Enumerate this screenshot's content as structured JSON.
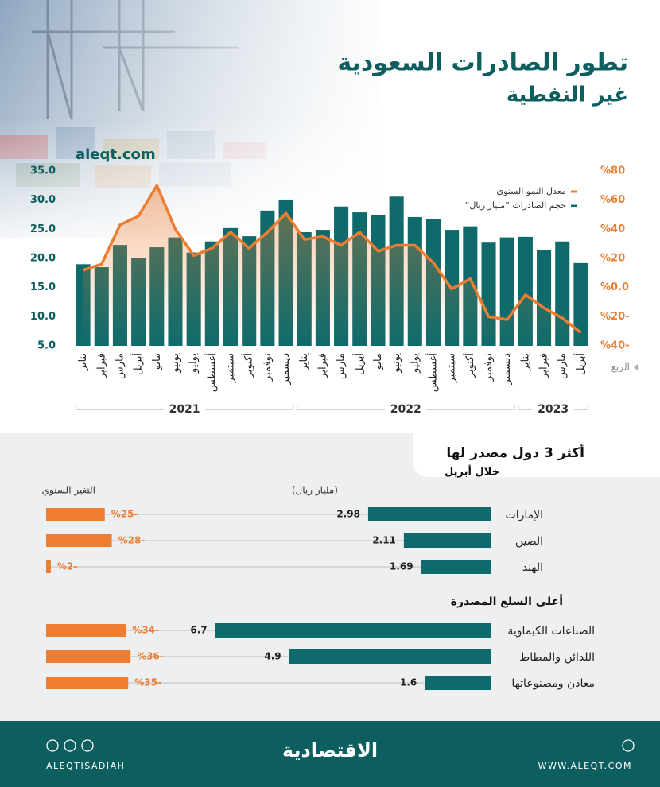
{
  "header": {
    "title": "تطور الصادرات السعودية",
    "subtitle": "غير النفطية",
    "source": "aleqt.com"
  },
  "chart_data": {
    "type": "combo",
    "categories": [
      "يناير",
      "فبراير",
      "مارس",
      "أبريل",
      "مايو",
      "يونيو",
      "يوليو",
      "أغسطس",
      "سبتمبر",
      "أكتوبر",
      "نوفمبر",
      "ديسمبر",
      "يناير",
      "فبراير",
      "مارس",
      "أبريل",
      "مايو",
      "يونيو",
      "يوليو",
      "أغسطس",
      "سبتمبر",
      "أكتوبر",
      "نوفمبر",
      "ديسمبر",
      "يناير",
      "فبراير",
      "مارس",
      "أبريل"
    ],
    "x_groups": [
      "2021",
      "2022",
      "2023"
    ],
    "x_axis_label": "الربع",
    "series": [
      {
        "name": "معدل النمو السنوي",
        "color": "#ee7d31",
        "kind": "line",
        "axis": "y2",
        "values": [
          12,
          16,
          43,
          49,
          70,
          40,
          22,
          27,
          38,
          27,
          38,
          51,
          33,
          35,
          29,
          38,
          25,
          29,
          29,
          17,
          -1,
          6,
          -20,
          -22,
          -5,
          -14,
          -21,
          -31
        ]
      },
      {
        "name": "حجم الصادرات ”مليار ريال“",
        "color": "#0f6b6b",
        "kind": "bar",
        "values": [
          19.0,
          18.5,
          22.3,
          20.0,
          21.9,
          23.6,
          21.0,
          22.9,
          25.2,
          23.8,
          28.2,
          30.1,
          24.5,
          24.9,
          28.9,
          27.9,
          27.4,
          30.6,
          27.1,
          26.7,
          24.9,
          25.5,
          22.7,
          23.6,
          23.7,
          21.4,
          22.9,
          19.2
        ]
      }
    ],
    "ylim": [
      5,
      35
    ],
    "yticks": [
      {
        "value": 5,
        "label": "5.0"
      },
      {
        "value": 10,
        "label": "10.0"
      },
      {
        "value": 15,
        "label": "15.0"
      },
      {
        "value": 20,
        "label": "20.0"
      },
      {
        "value": 25,
        "label": "25.0"
      },
      {
        "value": 30,
        "label": "30.0"
      },
      {
        "value": 35,
        "label": "35.0"
      }
    ],
    "y2lim": [
      -40,
      80
    ],
    "y2ticks": [
      {
        "value": -40,
        "label": "%40-"
      },
      {
        "value": -20,
        "label": "%20-"
      },
      {
        "value": 0,
        "label": "%0.0"
      },
      {
        "value": 20,
        "label": "%20"
      },
      {
        "value": 40,
        "label": "%40"
      },
      {
        "value": 60,
        "label": "%60"
      },
      {
        "value": 80,
        "label": "%80"
      }
    ],
    "grid": false
  },
  "countries": {
    "title": "أكثر 3 دول مصدر لها",
    "subtitle": "خلال أبريل",
    "unit_label": "(مليار ريال)",
    "change_label": "التغير السنوي",
    "color": "#0f6b6b",
    "change_color": "#ee7d31",
    "rows": [
      {
        "name": "الإمارات",
        "value": 2.98,
        "change": -25,
        "change_label": "%25-"
      },
      {
        "name": "الصين",
        "value": 2.11,
        "change": -28,
        "change_label": "%28-"
      },
      {
        "name": "الهند",
        "value": 1.69,
        "change": -2,
        "change_label": "%2-"
      }
    ]
  },
  "goods": {
    "title": "أعلى السلع المصدرة",
    "rows": [
      {
        "name": "الصناعات الكيماوية",
        "value": 6.7,
        "change": -34,
        "change_label": "%34-"
      },
      {
        "name": "اللدائن والمطاط",
        "value": 4.9,
        "change": -36,
        "change_label": "%36-"
      },
      {
        "name": "معادن ومصنوعاتها",
        "value": 1.6,
        "change": -35,
        "change_label": "%35-"
      }
    ]
  },
  "footer": {
    "handle": "ALEQTISADIAH",
    "website": "WWW.ALEQT.COM",
    "logo": "الاقتصادية"
  }
}
